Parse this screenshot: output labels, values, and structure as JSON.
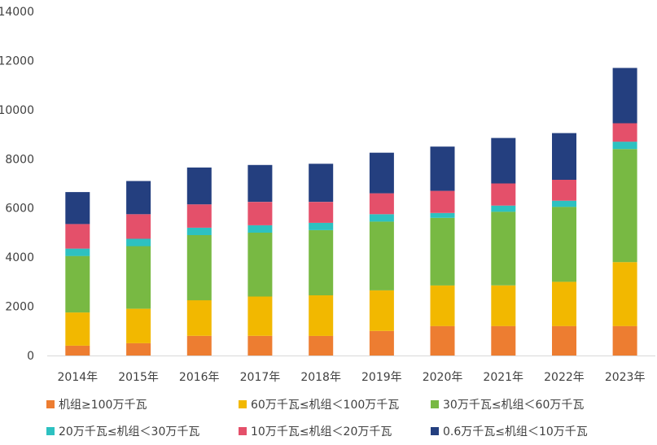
{
  "chart_data": {
    "type": "bar",
    "stacked": true,
    "title": "",
    "xlabel": "",
    "ylabel": "",
    "ylim": [
      0,
      14000
    ],
    "yticks": [
      0,
      2000,
      4000,
      6000,
      8000,
      10000,
      12000,
      14000
    ],
    "grid": false,
    "legend_position": "bottom",
    "categories": [
      "2014年",
      "2015年",
      "2016年",
      "2017年",
      "2018年",
      "2019年",
      "2020年",
      "2021年",
      "2022年",
      "2023年"
    ],
    "series": [
      {
        "name": "机组≥100万千瓦",
        "color": "#ED7D31",
        "values": [
          400,
          500,
          800,
          800,
          800,
          1000,
          1200,
          1200,
          1200,
          1200
        ]
      },
      {
        "name": "60万千瓦≤机组＜100万千瓦",
        "color": "#F2B800",
        "values": [
          1350,
          1400,
          1450,
          1600,
          1650,
          1650,
          1650,
          1650,
          1800,
          2600
        ]
      },
      {
        "name": "30万千瓦≤机组＜60万千瓦",
        "color": "#78B943",
        "values": [
          2300,
          2550,
          2650,
          2600,
          2650,
          2800,
          2750,
          3000,
          3050,
          4600
        ]
      },
      {
        "name": "20万千瓦≤机组＜30万千瓦",
        "color": "#2DC1C1",
        "values": [
          300,
          300,
          300,
          300,
          300,
          300,
          200,
          250,
          250,
          300
        ]
      },
      {
        "name": "10万千瓦≤机组＜20万千瓦",
        "color": "#E4506A",
        "values": [
          1000,
          1000,
          950,
          950,
          850,
          850,
          900,
          900,
          850,
          750
        ]
      },
      {
        "name": "0.6万千瓦≤机组＜10万千瓦",
        "color": "#243F7F",
        "values": [
          1300,
          1350,
          1500,
          1500,
          1550,
          1650,
          1800,
          1850,
          1900,
          2250
        ]
      }
    ]
  }
}
